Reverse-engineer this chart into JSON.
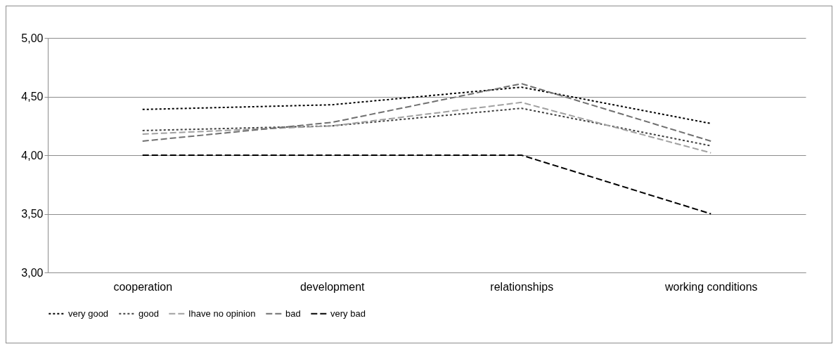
{
  "chart_data": {
    "type": "line",
    "categories": [
      "cooperation",
      "development",
      "relationships",
      "working conditions"
    ],
    "series": [
      {
        "name": "very good",
        "color": "#000000",
        "line_style": "dotted",
        "values": [
          4.39,
          4.43,
          4.58,
          4.27
        ]
      },
      {
        "name": "good",
        "color": "#404040",
        "line_style": "dotted",
        "values": [
          4.21,
          4.25,
          4.4,
          4.08
        ]
      },
      {
        "name": "Ihave no opinion",
        "color": "#a0a0a0",
        "line_style": "dashed",
        "values": [
          4.18,
          4.25,
          4.45,
          4.02
        ]
      },
      {
        "name": "bad",
        "color": "#707070",
        "line_style": "dashed",
        "values": [
          4.12,
          4.28,
          4.61,
          4.12
        ]
      },
      {
        "name": "very bad",
        "color": "#000000",
        "line_style": "dashed",
        "values": [
          4.0,
          4.0,
          4.0,
          3.5
        ]
      }
    ],
    "ylim": [
      3,
      5
    ],
    "yticks": [
      {
        "value": 3,
        "label": "3,00"
      },
      {
        "value": 3.5,
        "label": "3,50"
      },
      {
        "value": 4,
        "label": "4,00"
      },
      {
        "value": 4.5,
        "label": "4,50"
      },
      {
        "value": 5,
        "label": "5,00"
      }
    ],
    "grid": "y",
    "legend": "bottom",
    "marker": "none"
  }
}
